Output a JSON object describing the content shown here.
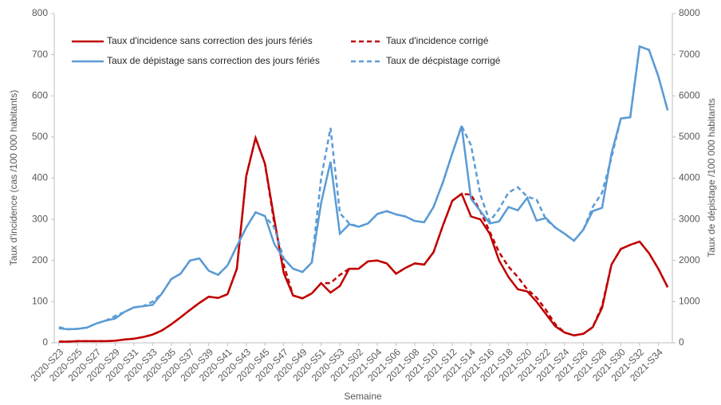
{
  "chart_data": {
    "type": "line",
    "x_label": "Semaine",
    "y_label": "Taux d'incidence (cas /100 000 habitants)",
    "y2_label": "Taux de dépistage /100 000 habitants",
    "categories": [
      "2020-S23",
      null,
      "2020-S25",
      null,
      "2020-S27",
      null,
      "2020-S29",
      null,
      "2020-S31",
      null,
      "2020-S33",
      null,
      "2020-S35",
      null,
      "2020-S37",
      null,
      "2020-S39",
      null,
      "2020-S41",
      null,
      "2020-S43",
      null,
      "2020-S45",
      null,
      "2020-S47",
      null,
      "2020-S49",
      null,
      "2020-S51",
      null,
      "2020-S53",
      null,
      "2021-S02",
      null,
      "2021-S04",
      null,
      "2021-S06",
      null,
      "2021-S08",
      null,
      "2021-S10",
      null,
      "2021-S12",
      null,
      "2021-S14",
      null,
      "2021-S16",
      null,
      "2021-S18",
      null,
      "2021-S20",
      null,
      "2021-S22",
      null,
      "2021-S24",
      null,
      "2021-S26",
      null,
      "2021-S28",
      null,
      "2021-S30",
      null,
      "2021-S32",
      null,
      "2021-S34",
      null
    ],
    "ylim": [
      0,
      800
    ],
    "yticks": [
      0,
      100,
      200,
      300,
      400,
      500,
      600,
      700,
      800
    ],
    "y2lim": [
      0,
      8000
    ],
    "y2ticks": [
      0,
      1000,
      2000,
      3000,
      4000,
      5000,
      6000,
      7000,
      8000
    ],
    "series": [
      {
        "name": "Taux d'incidence sans correction des jours fériés",
        "color": "#c00000",
        "dash": false,
        "axis": "y",
        "values": [
          3,
          3,
          4,
          4,
          4,
          4,
          5,
          8,
          10,
          14,
          20,
          30,
          45,
          62,
          80,
          97,
          112,
          109,
          118,
          180,
          405,
          498,
          435,
          300,
          170,
          115,
          108,
          120,
          145,
          122,
          138,
          180,
          180,
          198,
          200,
          193,
          168,
          182,
          193,
          190,
          220,
          285,
          345,
          362,
          307,
          300,
          265,
          200,
          160,
          130,
          125,
          100,
          70,
          40,
          25,
          18,
          22,
          38,
          85,
          190,
          228,
          238,
          246,
          218,
          180,
          135
        ]
      },
      {
        "name": "Taux d'incidence corrigé",
        "color": "#c00000",
        "dash": true,
        "axis": "y",
        "values": [
          3,
          3,
          4,
          4,
          4,
          4,
          5,
          8,
          10,
          14,
          20,
          30,
          45,
          62,
          80,
          97,
          112,
          109,
          118,
          180,
          405,
          498,
          435,
          290,
          190,
          115,
          108,
          120,
          145,
          145,
          165,
          180,
          180,
          198,
          200,
          193,
          168,
          182,
          193,
          190,
          220,
          285,
          345,
          362,
          360,
          320,
          270,
          220,
          185,
          160,
          130,
          110,
          80,
          45,
          25,
          18,
          22,
          38,
          90,
          190,
          228,
          238,
          246,
          218,
          180,
          135
        ]
      },
      {
        "name": "Taux de dépistage sans correction des jours fériés",
        "color": "#5b9bd5",
        "dash": false,
        "axis": "y2",
        "values": [
          350,
          330,
          340,
          370,
          470,
          540,
          590,
          750,
          860,
          890,
          920,
          1200,
          1550,
          1680,
          2000,
          2050,
          1750,
          1650,
          1880,
          2350,
          2800,
          3170,
          3080,
          2400,
          2050,
          1800,
          1720,
          1950,
          3400,
          4400,
          2650,
          2880,
          2820,
          2900,
          3130,
          3200,
          3120,
          3070,
          2960,
          2930,
          3300,
          3900,
          4600,
          5270,
          3500,
          3200,
          2900,
          2950,
          3300,
          3220,
          3520,
          2970,
          3030,
          2800,
          2650,
          2480,
          2750,
          3200,
          3280,
          4600,
          5450,
          5480,
          7200,
          7120,
          6480,
          5650
        ]
      },
      {
        "name": "Taux de décpistage corrigé",
        "color": "#5b9bd5",
        "dash": true,
        "axis": "y2",
        "values": [
          380,
          330,
          340,
          370,
          470,
          540,
          650,
          750,
          860,
          890,
          1000,
          1200,
          1550,
          1680,
          2000,
          2050,
          1750,
          1650,
          1880,
          2350,
          2800,
          3170,
          3080,
          2800,
          2050,
          1800,
          1720,
          1950,
          4000,
          5220,
          3150,
          2900,
          2820,
          2900,
          3130,
          3200,
          3120,
          3070,
          2960,
          2930,
          3300,
          3900,
          4600,
          5270,
          4800,
          3600,
          2950,
          3250,
          3650,
          3780,
          3550,
          3480,
          3000,
          2800,
          2650,
          2480,
          2750,
          3300,
          3650,
          4500,
          5450,
          5480,
          7200,
          7120,
          6480,
          5650
        ]
      }
    ]
  }
}
